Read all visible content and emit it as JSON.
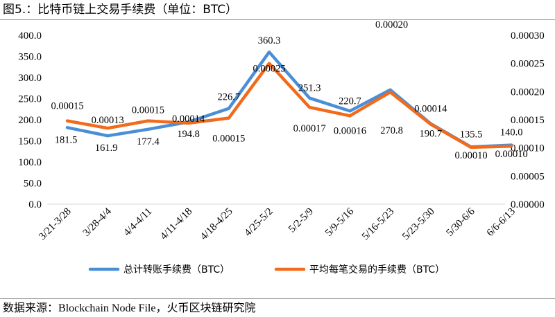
{
  "figure": {
    "title": "图5.：比特币链上交易手续费（单位：BTC）",
    "source_label": "数据来源：",
    "source_latin": "Blockchain Node File",
    "source_sep": "，",
    "source_cn": "火币区块链研究院"
  },
  "chart_data": {
    "type": "line",
    "title": "",
    "categories": [
      "3/21-3/28",
      "3/28-4/4",
      "4/4-4/11",
      "4/11-4/18",
      "4/18-4/25",
      "4/25-5/2",
      "5/2-5/9",
      "5/9-5/16",
      "5/16-5/23",
      "5/23-5/30",
      "5/30-6/6",
      "6/6-6/13"
    ],
    "series": [
      {
        "name": "总计转账手续费（BTC）",
        "axis": "left",
        "color": "#4a8fd6",
        "values": [
          181.5,
          161.9,
          177.4,
          194.8,
          226.7,
          360.3,
          251.3,
          220.7,
          270.8,
          190.7,
          135.5,
          140.0
        ],
        "labels": [
          "181.5",
          "161.9",
          "177.4",
          "194.8",
          "226.7",
          "360.3",
          "251.3",
          "220.7",
          "270.8",
          "190.7",
          "135.5",
          "140.0"
        ]
      },
      {
        "name": "平均每笔交易的手续费（BTC）",
        "axis": "right",
        "color": "#f26a1b",
        "values": [
          0.000148,
          0.000135,
          0.000148,
          0.000144,
          0.000153,
          0.00025,
          0.000172,
          0.000157,
          0.000199,
          0.000142,
          0.000101,
          0.000103
        ],
        "labels": [
          "0.00015",
          "0.00013",
          "0.00015",
          "0.00014",
          "0.00015",
          "0.00025",
          "0.00017",
          "0.00016",
          "0.00020",
          "0.00014",
          "0.00010",
          "0.00010"
        ]
      }
    ],
    "y_left": {
      "min": 0,
      "max": 400,
      "ticks": [
        "0.0",
        "50.0",
        "100.0",
        "150.0",
        "200.0",
        "250.0",
        "300.0",
        "350.0",
        "400.0"
      ]
    },
    "y_right": {
      "min": 0,
      "max": 0.0003,
      "ticks": [
        "0.00000",
        "0.00005",
        "0.00010",
        "0.00015",
        "0.00020",
        "0.00025",
        "0.00030"
      ]
    },
    "grid": false,
    "legend_position": "bottom"
  }
}
